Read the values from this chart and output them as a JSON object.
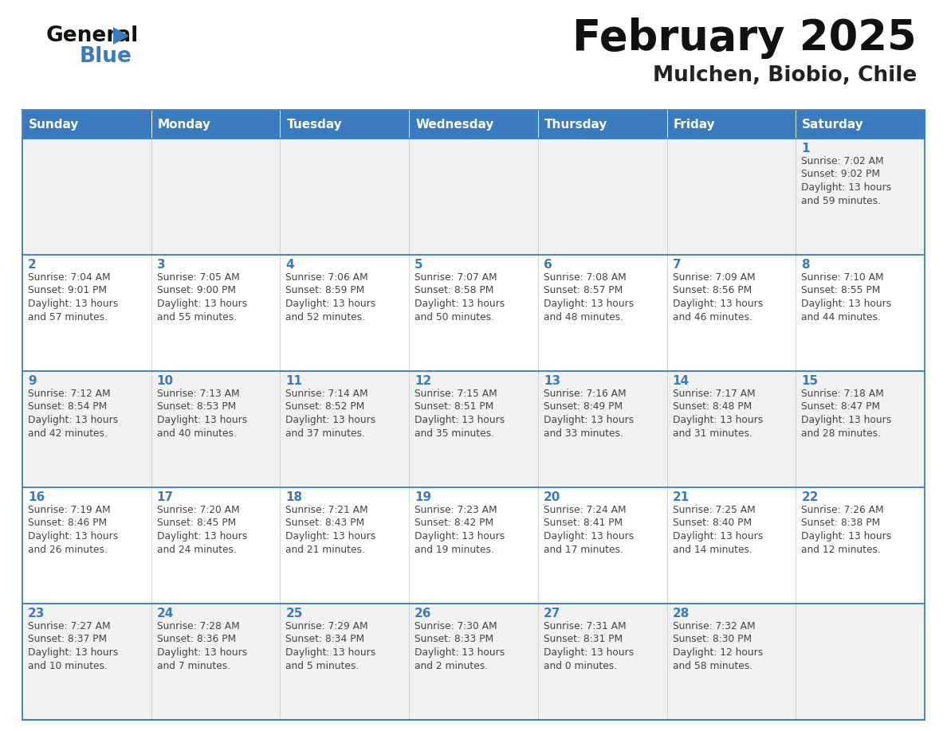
{
  "title": "February 2025",
  "subtitle": "Mulchen, Biobio, Chile",
  "header_bg_color": "#3a7bbf",
  "header_text_color": "#ffffff",
  "cell_bg_odd": "#f2f2f2",
  "cell_bg_even": "#ffffff",
  "grid_line_color": "#3a7bbf",
  "day_number_color": "#3a7bbf",
  "info_text_color": "#444444",
  "days_of_week": [
    "Sunday",
    "Monday",
    "Tuesday",
    "Wednesday",
    "Thursday",
    "Friday",
    "Saturday"
  ],
  "calendar_data": [
    [
      null,
      null,
      null,
      null,
      null,
      null,
      {
        "day": "1",
        "sunrise": "7:02 AM",
        "sunset": "9:02 PM",
        "dl1": "Daylight: 13 hours",
        "dl2": "and 59 minutes."
      }
    ],
    [
      {
        "day": "2",
        "sunrise": "7:04 AM",
        "sunset": "9:01 PM",
        "dl1": "Daylight: 13 hours",
        "dl2": "and 57 minutes."
      },
      {
        "day": "3",
        "sunrise": "7:05 AM",
        "sunset": "9:00 PM",
        "dl1": "Daylight: 13 hours",
        "dl2": "and 55 minutes."
      },
      {
        "day": "4",
        "sunrise": "7:06 AM",
        "sunset": "8:59 PM",
        "dl1": "Daylight: 13 hours",
        "dl2": "and 52 minutes."
      },
      {
        "day": "5",
        "sunrise": "7:07 AM",
        "sunset": "8:58 PM",
        "dl1": "Daylight: 13 hours",
        "dl2": "and 50 minutes."
      },
      {
        "day": "6",
        "sunrise": "7:08 AM",
        "sunset": "8:57 PM",
        "dl1": "Daylight: 13 hours",
        "dl2": "and 48 minutes."
      },
      {
        "day": "7",
        "sunrise": "7:09 AM",
        "sunset": "8:56 PM",
        "dl1": "Daylight: 13 hours",
        "dl2": "and 46 minutes."
      },
      {
        "day": "8",
        "sunrise": "7:10 AM",
        "sunset": "8:55 PM",
        "dl1": "Daylight: 13 hours",
        "dl2": "and 44 minutes."
      }
    ],
    [
      {
        "day": "9",
        "sunrise": "7:12 AM",
        "sunset": "8:54 PM",
        "dl1": "Daylight: 13 hours",
        "dl2": "and 42 minutes."
      },
      {
        "day": "10",
        "sunrise": "7:13 AM",
        "sunset": "8:53 PM",
        "dl1": "Daylight: 13 hours",
        "dl2": "and 40 minutes."
      },
      {
        "day": "11",
        "sunrise": "7:14 AM",
        "sunset": "8:52 PM",
        "dl1": "Daylight: 13 hours",
        "dl2": "and 37 minutes."
      },
      {
        "day": "12",
        "sunrise": "7:15 AM",
        "sunset": "8:51 PM",
        "dl1": "Daylight: 13 hours",
        "dl2": "and 35 minutes."
      },
      {
        "day": "13",
        "sunrise": "7:16 AM",
        "sunset": "8:49 PM",
        "dl1": "Daylight: 13 hours",
        "dl2": "and 33 minutes."
      },
      {
        "day": "14",
        "sunrise": "7:17 AM",
        "sunset": "8:48 PM",
        "dl1": "Daylight: 13 hours",
        "dl2": "and 31 minutes."
      },
      {
        "day": "15",
        "sunrise": "7:18 AM",
        "sunset": "8:47 PM",
        "dl1": "Daylight: 13 hours",
        "dl2": "and 28 minutes."
      }
    ],
    [
      {
        "day": "16",
        "sunrise": "7:19 AM",
        "sunset": "8:46 PM",
        "dl1": "Daylight: 13 hours",
        "dl2": "and 26 minutes."
      },
      {
        "day": "17",
        "sunrise": "7:20 AM",
        "sunset": "8:45 PM",
        "dl1": "Daylight: 13 hours",
        "dl2": "and 24 minutes."
      },
      {
        "day": "18",
        "sunrise": "7:21 AM",
        "sunset": "8:43 PM",
        "dl1": "Daylight: 13 hours",
        "dl2": "and 21 minutes."
      },
      {
        "day": "19",
        "sunrise": "7:23 AM",
        "sunset": "8:42 PM",
        "dl1": "Daylight: 13 hours",
        "dl2": "and 19 minutes."
      },
      {
        "day": "20",
        "sunrise": "7:24 AM",
        "sunset": "8:41 PM",
        "dl1": "Daylight: 13 hours",
        "dl2": "and 17 minutes."
      },
      {
        "day": "21",
        "sunrise": "7:25 AM",
        "sunset": "8:40 PM",
        "dl1": "Daylight: 13 hours",
        "dl2": "and 14 minutes."
      },
      {
        "day": "22",
        "sunrise": "7:26 AM",
        "sunset": "8:38 PM",
        "dl1": "Daylight: 13 hours",
        "dl2": "and 12 minutes."
      }
    ],
    [
      {
        "day": "23",
        "sunrise": "7:27 AM",
        "sunset": "8:37 PM",
        "dl1": "Daylight: 13 hours",
        "dl2": "and 10 minutes."
      },
      {
        "day": "24",
        "sunrise": "7:28 AM",
        "sunset": "8:36 PM",
        "dl1": "Daylight: 13 hours",
        "dl2": "and 7 minutes."
      },
      {
        "day": "25",
        "sunrise": "7:29 AM",
        "sunset": "8:34 PM",
        "dl1": "Daylight: 13 hours",
        "dl2": "and 5 minutes."
      },
      {
        "day": "26",
        "sunrise": "7:30 AM",
        "sunset": "8:33 PM",
        "dl1": "Daylight: 13 hours",
        "dl2": "and 2 minutes."
      },
      {
        "day": "27",
        "sunrise": "7:31 AM",
        "sunset": "8:31 PM",
        "dl1": "Daylight: 13 hours",
        "dl2": "and 0 minutes."
      },
      {
        "day": "28",
        "sunrise": "7:32 AM",
        "sunset": "8:30 PM",
        "dl1": "Daylight: 12 hours",
        "dl2": "and 58 minutes."
      },
      null
    ]
  ],
  "logo_general_color": "#111111",
  "logo_blue_color": "#3a7bbf",
  "logo_triangle_color": "#3a7bbf",
  "title_color": "#111111",
  "subtitle_color": "#222222"
}
